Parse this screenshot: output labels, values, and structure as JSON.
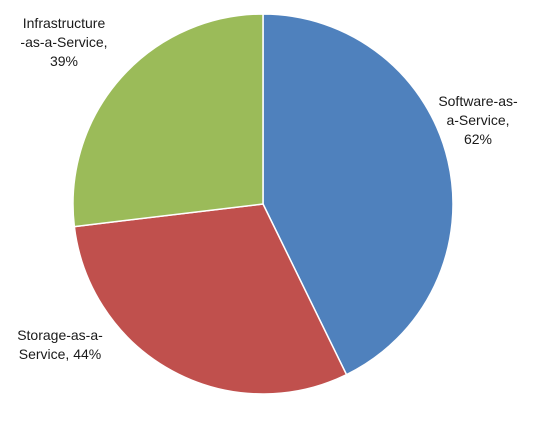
{
  "chart_data": {
    "type": "pie",
    "title": "",
    "legend": "none",
    "start_angle_deg": 0,
    "direction": "clockwise",
    "slices": [
      {
        "category": "Software-as-a-Service",
        "value": 62,
        "value_label": "62%",
        "label_lines": [
          "Software-as-",
          "a-Service,",
          "62%"
        ],
        "color": "#4F81BD"
      },
      {
        "category": "Storage-as-a-Service",
        "value": 44,
        "value_label": "44%",
        "label_lines": [
          "Storage-as-a-",
          "Service, 44%"
        ],
        "color": "#C0504D"
      },
      {
        "category": "Infrastructure-as-a-Service",
        "value": 39,
        "value_label": "39%",
        "label_lines": [
          "Infrastructure",
          "-as-a-Service,",
          "39%"
        ],
        "color": "#9BBB59"
      }
    ]
  }
}
